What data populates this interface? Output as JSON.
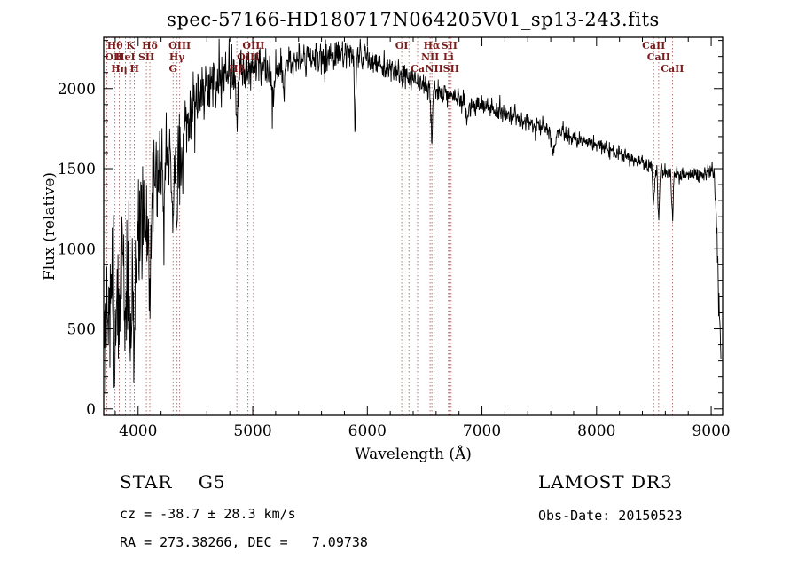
{
  "chart_data": {
    "type": "line",
    "title": "spec-57166-HD180717N064205V01_sp13-243.fits",
    "xlabel": "Wavelength (Å)",
    "ylabel": "Flux (relative)",
    "xlim": [
      3700,
      9100
    ],
    "ylim": [
      -40,
      2320
    ],
    "xticks": [
      4000,
      5000,
      6000,
      7000,
      8000,
      9000
    ],
    "yticks": [
      0,
      500,
      1000,
      1500,
      2000
    ],
    "grid": false,
    "legend": "none",
    "line_color": "#000000",
    "marker_color": "#b05050",
    "marker_label_color": "#7b1b1b",
    "seed": 20150523,
    "n_samples": 1600,
    "continuum": [
      [
        3700,
        400
      ],
      [
        3740,
        620
      ],
      [
        3780,
        720
      ],
      [
        3820,
        800
      ],
      [
        3860,
        860
      ],
      [
        3900,
        900
      ],
      [
        3940,
        950
      ],
      [
        3980,
        1000
      ],
      [
        4020,
        1080
      ],
      [
        4060,
        1160
      ],
      [
        4100,
        1250
      ],
      [
        4150,
        1380
      ],
      [
        4200,
        1500
      ],
      [
        4250,
        1590
      ],
      [
        4300,
        1660
      ],
      [
        4350,
        1720
      ],
      [
        4400,
        1790
      ],
      [
        4450,
        1850
      ],
      [
        4500,
        1900
      ],
      [
        4550,
        1940
      ],
      [
        4600,
        1980
      ],
      [
        4650,
        2010
      ],
      [
        4700,
        2040
      ],
      [
        4750,
        2060
      ],
      [
        4800,
        2080
      ],
      [
        4850,
        2090
      ],
      [
        4900,
        2100
      ],
      [
        4950,
        2115
      ],
      [
        5000,
        2130
      ],
      [
        5050,
        2140
      ],
      [
        5100,
        2150
      ],
      [
        5150,
        2150
      ],
      [
        5200,
        2155
      ],
      [
        5250,
        2160
      ],
      [
        5300,
        2160
      ],
      [
        5350,
        2165
      ],
      [
        5400,
        2170
      ],
      [
        5450,
        2175
      ],
      [
        5500,
        2180
      ],
      [
        5550,
        2190
      ],
      [
        5600,
        2200
      ],
      [
        5650,
        2205
      ],
      [
        5700,
        2210
      ],
      [
        5750,
        2220
      ],
      [
        5800,
        2230
      ],
      [
        5850,
        2230
      ],
      [
        5900,
        2215
      ],
      [
        5950,
        2195
      ],
      [
        6000,
        2180
      ],
      [
        6050,
        2165
      ],
      [
        6100,
        2150
      ],
      [
        6150,
        2135
      ],
      [
        6200,
        2120
      ],
      [
        6250,
        2100
      ],
      [
        6300,
        2080
      ],
      [
        6350,
        2065
      ],
      [
        6400,
        2050
      ],
      [
        6450,
        2035
      ],
      [
        6500,
        2020
      ],
      [
        6550,
        2005
      ],
      [
        6600,
        1990
      ],
      [
        6650,
        1975
      ],
      [
        6700,
        1960
      ],
      [
        6750,
        1945
      ],
      [
        6800,
        1930
      ],
      [
        6850,
        1915
      ],
      [
        6900,
        1900
      ],
      [
        6950,
        1895
      ],
      [
        7000,
        1890
      ],
      [
        7050,
        1880
      ],
      [
        7100,
        1870
      ],
      [
        7150,
        1855
      ],
      [
        7200,
        1840
      ],
      [
        7250,
        1825
      ],
      [
        7300,
        1810
      ],
      [
        7350,
        1800
      ],
      [
        7400,
        1790
      ],
      [
        7450,
        1780
      ],
      [
        7500,
        1770
      ],
      [
        7550,
        1755
      ],
      [
        7600,
        1740
      ],
      [
        7650,
        1730
      ],
      [
        7700,
        1720
      ],
      [
        7750,
        1710
      ],
      [
        7800,
        1700
      ],
      [
        7850,
        1685
      ],
      [
        7900,
        1670
      ],
      [
        7950,
        1660
      ],
      [
        8000,
        1650
      ],
      [
        8050,
        1635
      ],
      [
        8100,
        1620
      ],
      [
        8150,
        1605
      ],
      [
        8200,
        1590
      ],
      [
        8250,
        1575
      ],
      [
        8300,
        1560
      ],
      [
        8350,
        1545
      ],
      [
        8400,
        1530
      ],
      [
        8450,
        1515
      ],
      [
        8500,
        1500
      ],
      [
        8550,
        1490
      ],
      [
        8600,
        1480
      ],
      [
        8650,
        1475
      ],
      [
        8700,
        1470
      ],
      [
        8750,
        1465
      ],
      [
        8800,
        1460
      ],
      [
        8850,
        1458
      ],
      [
        8900,
        1455
      ],
      [
        8950,
        1470
      ],
      [
        9000,
        1500
      ],
      [
        9025,
        1470
      ],
      [
        9050,
        1100
      ],
      [
        9070,
        600
      ],
      [
        9085,
        350
      ]
    ],
    "noise_sigma": [
      [
        3700,
        250
      ],
      [
        3750,
        295
      ],
      [
        3800,
        300
      ],
      [
        3850,
        295
      ],
      [
        3900,
        285
      ],
      [
        3950,
        265
      ],
      [
        4000,
        245
      ],
      [
        4050,
        225
      ],
      [
        4100,
        210
      ],
      [
        4150,
        195
      ],
      [
        4200,
        180
      ],
      [
        4250,
        170
      ],
      [
        4300,
        160
      ],
      [
        4350,
        150
      ],
      [
        4400,
        140
      ],
      [
        4450,
        130
      ],
      [
        4500,
        120
      ],
      [
        4550,
        112
      ],
      [
        4600,
        105
      ],
      [
        4650,
        100
      ],
      [
        4700,
        95
      ],
      [
        4750,
        92
      ],
      [
        4800,
        90
      ],
      [
        4850,
        87
      ],
      [
        4900,
        85
      ],
      [
        4950,
        82
      ],
      [
        5000,
        80
      ],
      [
        5100,
        78
      ],
      [
        5200,
        75
      ],
      [
        5300,
        72
      ],
      [
        5400,
        70
      ],
      [
        5500,
        67
      ],
      [
        5600,
        64
      ],
      [
        5700,
        62
      ],
      [
        5800,
        60
      ],
      [
        5900,
        57
      ],
      [
        6000,
        55
      ],
      [
        6100,
        53
      ],
      [
        6200,
        51
      ],
      [
        6300,
        50
      ],
      [
        6400,
        48
      ],
      [
        6500,
        46
      ],
      [
        6600,
        45
      ],
      [
        6700,
        44
      ],
      [
        6800,
        42
      ],
      [
        6900,
        41
      ],
      [
        7000,
        40
      ],
      [
        7100,
        39
      ],
      [
        7200,
        38
      ],
      [
        7300,
        37
      ],
      [
        7400,
        36
      ],
      [
        7500,
        35
      ],
      [
        7600,
        35
      ],
      [
        7700,
        34
      ],
      [
        7800,
        34
      ],
      [
        7900,
        33
      ],
      [
        8000,
        33
      ],
      [
        8100,
        32
      ],
      [
        8200,
        32
      ],
      [
        8300,
        31
      ],
      [
        8400,
        30
      ],
      [
        8500,
        29
      ],
      [
        8600,
        29
      ],
      [
        8700,
        28
      ],
      [
        8800,
        28
      ],
      [
        8900,
        28
      ],
      [
        9000,
        30
      ],
      [
        9050,
        45
      ],
      [
        9085,
        60
      ]
    ],
    "absorption_dips": [
      {
        "center": 3798,
        "depth": 0.45,
        "width": 7
      },
      {
        "center": 3835,
        "depth": 0.45,
        "width": 7
      },
      {
        "center": 3889,
        "depth": 0.4,
        "width": 7
      },
      {
        "center": 3933,
        "depth": 0.55,
        "width": 9
      },
      {
        "center": 3968,
        "depth": 0.5,
        "width": 9
      },
      {
        "center": 4102,
        "depth": 0.38,
        "width": 9
      },
      {
        "center": 4226,
        "depth": 0.22,
        "width": 6
      },
      {
        "center": 4305,
        "depth": 0.25,
        "width": 11
      },
      {
        "center": 4340,
        "depth": 0.28,
        "width": 8
      },
      {
        "center": 4383,
        "depth": 0.18,
        "width": 6
      },
      {
        "center": 4861,
        "depth": 0.16,
        "width": 7
      },
      {
        "center": 5175,
        "depth": 0.12,
        "width": 10
      },
      {
        "center": 5270,
        "depth": 0.08,
        "width": 8
      },
      {
        "center": 5893,
        "depth": 0.21,
        "width": 7
      },
      {
        "center": 6563,
        "depth": 0.17,
        "width": 7
      },
      {
        "center": 6870,
        "depth": 0.06,
        "width": 12
      },
      {
        "center": 7620,
        "depth": 0.07,
        "width": 16
      },
      {
        "center": 8498,
        "depth": 0.15,
        "width": 7
      },
      {
        "center": 8542,
        "depth": 0.19,
        "width": 7
      },
      {
        "center": 8662,
        "depth": 0.18,
        "width": 7
      }
    ],
    "spectral_lines": [
      {
        "wl": 3727,
        "label": "OII",
        "row": 1
      },
      {
        "wl": 3798,
        "label": "Hθ",
        "row": 0
      },
      {
        "wl": 3835,
        "label": "Hη",
        "row": 2
      },
      {
        "wl": 3889,
        "label": "HeI",
        "row": 1
      },
      {
        "wl": 3933,
        "label": "K",
        "row": 0
      },
      {
        "wl": 3968,
        "label": "H",
        "row": 2
      },
      {
        "wl": 4072,
        "label": "SII",
        "row": 1
      },
      {
        "wl": 4102,
        "label": "Hδ",
        "row": 0
      },
      {
        "wl": 4305,
        "label": "G",
        "row": 2
      },
      {
        "wl": 4340,
        "label": "Hγ",
        "row": 1
      },
      {
        "wl": 4363,
        "label": "OIII",
        "row": 0
      },
      {
        "wl": 4861,
        "label": "Hβ",
        "row": 2
      },
      {
        "wl": 4959,
        "label": "OIII",
        "row": 1
      },
      {
        "wl": 5007,
        "label": "OIII",
        "row": 0
      },
      {
        "wl": 6300,
        "label": "OI",
        "row": 0
      },
      {
        "wl": 6363,
        "label": "",
        "row": 0
      },
      {
        "wl": 6439,
        "label": "Ca",
        "row": 2
      },
      {
        "wl": 6548,
        "label": "NII",
        "row": 1
      },
      {
        "wl": 6563,
        "label": "Hα",
        "row": 0
      },
      {
        "wl": 6583,
        "label": "NII",
        "row": 2
      },
      {
        "wl": 6708,
        "label": "Li",
        "row": 1
      },
      {
        "wl": 6716,
        "label": "SII",
        "row": 0
      },
      {
        "wl": 6731,
        "label": "SII",
        "row": 2
      },
      {
        "wl": 8498,
        "label": "CaII",
        "row": 0
      },
      {
        "wl": 8542,
        "label": "CaII",
        "row": 1
      },
      {
        "wl": 8662,
        "label": "CaII",
        "row": 2
      }
    ]
  },
  "annotations": {
    "classification": "STAR    G5",
    "cz": "cz = -38.7 ± 28.3 km/s",
    "coords": "RA = 273.38266, DEC =   7.09738",
    "survey": "LAMOST DR3",
    "obs_date": "Obs-Date: 20150523"
  }
}
